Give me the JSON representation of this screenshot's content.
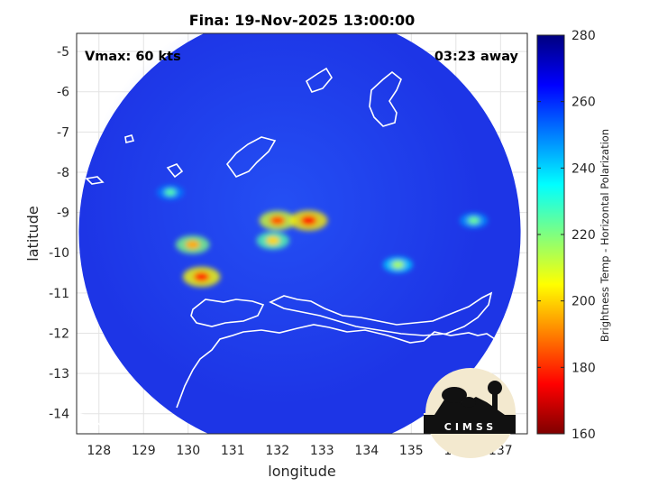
{
  "chart_data": {
    "type": "heatmap",
    "title": "Fina: 19-Nov-2025 13:00:00",
    "xlabel": "longitude",
    "ylabel": "latitude",
    "xlim": [
      127.5,
      137.6
    ],
    "ylim": [
      -14.5,
      -4.55
    ],
    "xticks": [
      "128",
      "129",
      "130",
      "131",
      "132",
      "133",
      "134",
      "135",
      "136",
      "137"
    ],
    "yticks": [
      "-5",
      "-6",
      "-7",
      "-8",
      "-9",
      "-10",
      "-11",
      "-12",
      "-13",
      "-14"
    ],
    "grid": true,
    "colorbar": {
      "label": "Brightness Temp - Horizontal Polarization",
      "range": [
        160,
        280
      ],
      "ticks": [
        "280",
        "260",
        "240",
        "220",
        "200",
        "180",
        "160"
      ],
      "colormap": "jet"
    },
    "swath": {
      "center_lon": 132.5,
      "center_lat": -9.5,
      "radius_deg": 4.95
    },
    "features": [
      {
        "lon": 132.0,
        "lat": -9.2,
        "value": 185
      },
      {
        "lon": 132.7,
        "lat": -9.2,
        "value": 178
      },
      {
        "lon": 131.9,
        "lat": -9.7,
        "value": 200
      },
      {
        "lon": 130.3,
        "lat": -10.6,
        "value": 180
      },
      {
        "lon": 130.1,
        "lat": -9.8,
        "value": 195
      },
      {
        "lon": 134.7,
        "lat": -10.3,
        "value": 215
      },
      {
        "lon": 136.4,
        "lat": -9.2,
        "value": 222
      },
      {
        "lon": 129.6,
        "lat": -8.5,
        "value": 225
      }
    ],
    "annotations": {
      "vmax": "Vmax: 60 kts",
      "time_away": "03:23 away"
    },
    "logo": "CIMSS"
  }
}
